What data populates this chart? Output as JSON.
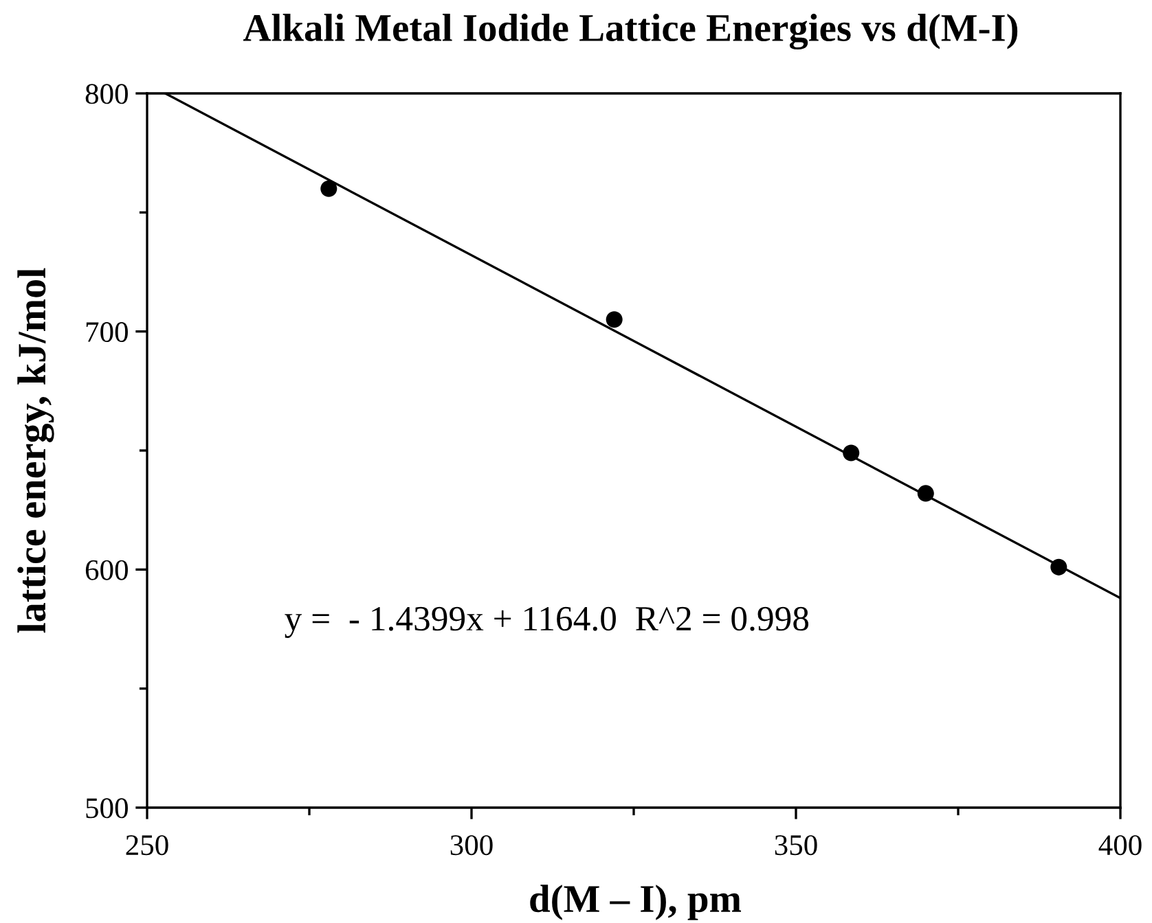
{
  "chart_data": {
    "type": "scatter",
    "title": "Alkali Metal Iodide Lattice Energies vs d(M-I)",
    "xlabel": "d(M – I), pm",
    "ylabel": "lattice energy, kJ/mol",
    "annotations": [
      "y =  - 1.4399x + 1164.0  R^2 = 0.998"
    ],
    "series": [
      {
        "color": "#000000",
        "marker": "circle",
        "x": [
          278,
          322,
          358.5,
          370,
          390.5
        ],
        "values": [
          760,
          705,
          649,
          632,
          601
        ]
      },
      {
        "type": "line",
        "color": "#000000",
        "line_style": "solid",
        "marker": "none",
        "x": [
          252.8,
          400
        ],
        "values": [
          800,
          588
        ]
      }
    ],
    "xlim": [
      250,
      400
    ],
    "ylim": [
      500,
      800
    ],
    "xticks": [
      250,
      {
        "value": 275,
        "label": null
      },
      300,
      {
        "value": 325,
        "label": null
      },
      350,
      {
        "value": 375,
        "label": null
      },
      400
    ],
    "yticks": [
      500,
      {
        "value": 550,
        "label": null
      },
      600,
      {
        "value": 650,
        "label": null
      },
      700,
      {
        "value": 750,
        "label": null
      },
      800
    ],
    "grid": false
  }
}
